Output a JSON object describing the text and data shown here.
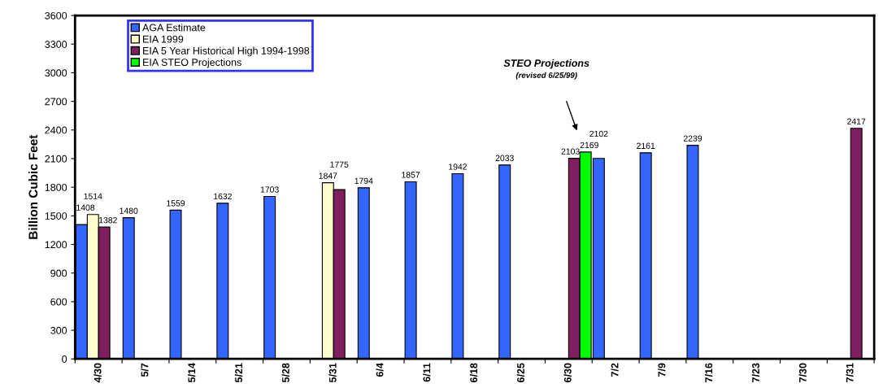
{
  "chart_data": {
    "type": "bar",
    "ylabel": "Billion Cubic Feet",
    "categories": [
      "4/30",
      "5/7",
      "5/14",
      "5/21",
      "5/28",
      "5/31",
      "6/4",
      "6/11",
      "6/18",
      "6/25",
      "6/30",
      "7/2",
      "7/9",
      "7/16",
      "7/23",
      "7/30",
      "7/31"
    ],
    "series": [
      {
        "name": "AGA Estimate",
        "color": "#3366ff",
        "values": [
          1408,
          1480,
          1559,
          1632,
          1703,
          null,
          1794,
          1857,
          1942,
          2033,
          null,
          2102,
          2161,
          2239,
          null,
          null,
          null
        ]
      },
      {
        "name": "EIA 1999",
        "color": "#ffffcc",
        "values": [
          1514,
          null,
          null,
          null,
          null,
          1847,
          null,
          null,
          null,
          null,
          null,
          null,
          null,
          null,
          null,
          null,
          null
        ]
      },
      {
        "name": "EIA 5 Year Historical High 1994-1998",
        "color": "#7f1f5f",
        "values": [
          1382,
          null,
          null,
          null,
          null,
          1775,
          null,
          null,
          null,
          null,
          2103,
          null,
          null,
          null,
          null,
          null,
          2417
        ]
      },
      {
        "name": "EIA STEO Projections",
        "color": "#00ff00",
        "values": [
          null,
          null,
          null,
          null,
          null,
          null,
          null,
          null,
          null,
          null,
          2169,
          null,
          null,
          null,
          null,
          null,
          null
        ]
      }
    ],
    "ylim": [
      0,
      3600
    ],
    "yticks": [
      0,
      300,
      600,
      900,
      1200,
      1500,
      1800,
      2100,
      2400,
      2700,
      3000,
      3300,
      3600
    ],
    "data_labels": true,
    "legend": "top left",
    "grid": false,
    "annotations": [
      "STEO Projections",
      "(revised 6/25/99)"
    ]
  }
}
